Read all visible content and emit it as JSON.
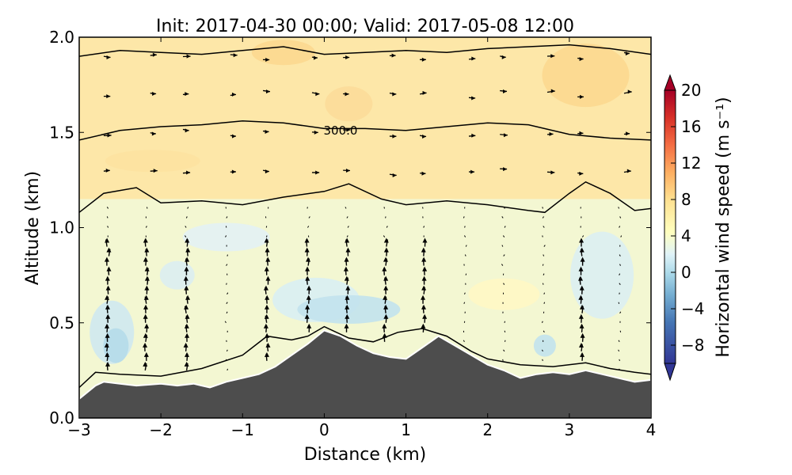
{
  "chart_data": {
    "type": "contour",
    "title": "Init: 2017-04-30 00:00; Valid: 2017-05-08 12:00",
    "xlabel": "Distance (km)",
    "ylabel": "Altitude (km)",
    "xlim": [
      -3,
      4
    ],
    "ylim": [
      0,
      2
    ],
    "xticks": [
      "−3",
      "−2",
      "−1",
      "0",
      "1",
      "2",
      "3",
      "4"
    ],
    "yticks": [
      "0.0",
      "0.5",
      "1.0",
      "1.5",
      "2.0"
    ],
    "colorbar": {
      "label": "Horizontal wind speed (m s⁻¹)",
      "range": [
        -10,
        20
      ],
      "ticks": [
        "20",
        "16",
        "12",
        "8",
        "4",
        "0",
        "−4",
        "−8"
      ],
      "colormap": "RdYlBu_r",
      "extend": "both"
    },
    "terrain": {
      "x": [
        -3,
        -2.8,
        -2.7,
        -2.5,
        -2.3,
        -2.0,
        -1.8,
        -1.6,
        -1.4,
        -1.2,
        -1.0,
        -0.8,
        -0.6,
        -0.4,
        -0.2,
        0.0,
        0.2,
        0.4,
        0.6,
        0.8,
        1.0,
        1.2,
        1.4,
        1.6,
        1.8,
        2.0,
        2.2,
        2.4,
        2.6,
        2.8,
        3.0,
        3.2,
        3.4,
        3.6,
        3.8,
        4.0
      ],
      "altitude_km": [
        0.1,
        0.17,
        0.19,
        0.18,
        0.17,
        0.18,
        0.17,
        0.18,
        0.16,
        0.19,
        0.21,
        0.23,
        0.27,
        0.33,
        0.39,
        0.46,
        0.43,
        0.38,
        0.34,
        0.32,
        0.31,
        0.37,
        0.43,
        0.38,
        0.33,
        0.28,
        0.25,
        0.21,
        0.23,
        0.24,
        0.23,
        0.25,
        0.23,
        0.21,
        0.19,
        0.2
      ]
    },
    "theta_contours": [
      {
        "x": [
          -3,
          -2.5,
          -2.0,
          -1.5,
          -1.0,
          -0.5,
          0.0,
          0.5,
          1.0,
          1.5,
          2.0,
          2.5,
          3.0,
          3.5,
          4.0
        ],
        "altitude_km": [
          1.9,
          1.93,
          1.92,
          1.91,
          1.93,
          1.95,
          1.91,
          1.92,
          1.93,
          1.92,
          1.94,
          1.95,
          1.96,
          1.94,
          1.91
        ]
      },
      {
        "label": "300.0",
        "x": [
          -3,
          -2.5,
          -2.0,
          -1.5,
          -1.0,
          -0.5,
          0.0,
          0.5,
          1.0,
          1.5,
          2.0,
          2.5,
          3.0,
          3.5,
          4.0
        ],
        "altitude_km": [
          1.46,
          1.51,
          1.53,
          1.54,
          1.56,
          1.55,
          1.52,
          1.52,
          1.51,
          1.53,
          1.55,
          1.54,
          1.49,
          1.47,
          1.46
        ]
      },
      {
        "x": [
          -3,
          -2.7,
          -2.3,
          -2.0,
          -1.5,
          -1.0,
          -0.5,
          0.0,
          0.3,
          0.7,
          1.0,
          1.5,
          2.0,
          2.5,
          2.7,
          3.0,
          3.2,
          3.5,
          3.8,
          4.0
        ],
        "altitude_km": [
          1.08,
          1.18,
          1.21,
          1.13,
          1.14,
          1.12,
          1.16,
          1.19,
          1.23,
          1.15,
          1.12,
          1.14,
          1.12,
          1.09,
          1.08,
          1.18,
          1.24,
          1.18,
          1.09,
          1.1
        ]
      },
      {
        "x": [
          -3,
          -2.8,
          -2.5,
          -2.0,
          -1.5,
          -1.0,
          -0.7,
          -0.4,
          -0.2,
          0.0,
          0.3,
          0.6,
          0.9,
          1.2,
          1.5,
          1.8,
          2.0,
          2.4,
          2.8,
          3.2,
          3.5,
          3.8,
          4.0
        ],
        "altitude_km": [
          0.16,
          0.24,
          0.23,
          0.22,
          0.26,
          0.33,
          0.43,
          0.41,
          0.43,
          0.48,
          0.42,
          0.4,
          0.45,
          0.47,
          0.43,
          0.35,
          0.31,
          0.28,
          0.27,
          0.29,
          0.26,
          0.24,
          0.23
        ]
      }
    ],
    "wind_vectors": {
      "x_columns": [
        -2.65,
        -2.18,
        -1.68,
        -1.2,
        -0.7,
        -0.2,
        0.28,
        0.75,
        1.22,
        1.72,
        2.2,
        2.68,
        3.15,
        3.62
      ],
      "rows_altitude_km": [
        1.9,
        1.7,
        1.5,
        1.3
      ]
    }
  }
}
